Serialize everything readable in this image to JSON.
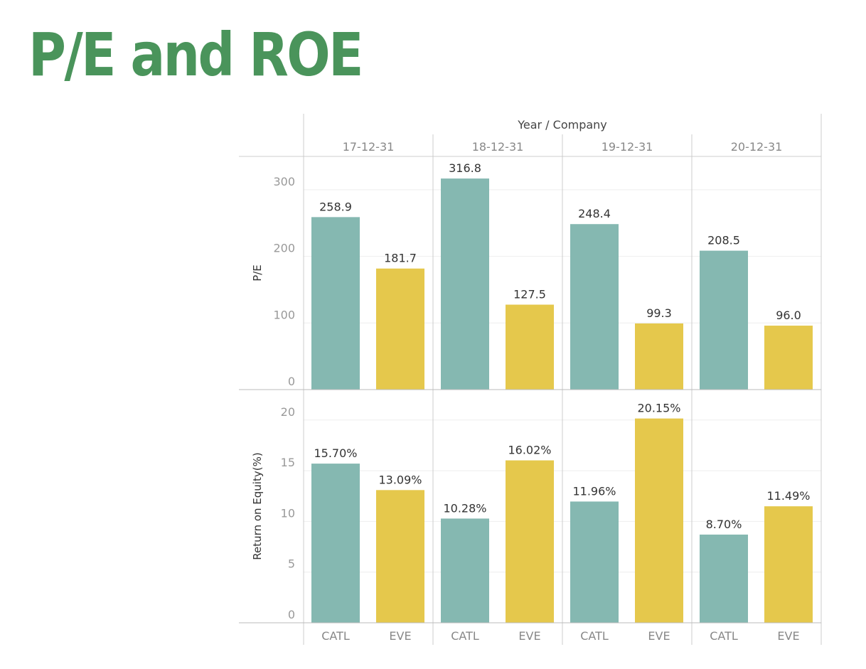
{
  "title": "P/E and ROE",
  "colors": {
    "title": "#4a945b",
    "CATL": "#85b8b1",
    "EVE": "#e5c84c"
  },
  "chart_data": {
    "type": "bar",
    "header": "Year / Company",
    "years": [
      "17-12-31",
      "18-12-31",
      "19-12-31",
      "20-12-31"
    ],
    "companies": [
      "CATL",
      "EVE"
    ],
    "panels": [
      {
        "ylabel": "P/E",
        "ylim": [
          0,
          350
        ],
        "yticks": [
          "0",
          "100",
          "200",
          "300"
        ],
        "values": [
          [
            258.9,
            181.7
          ],
          [
            316.8,
            127.5
          ],
          [
            248.4,
            99.3
          ],
          [
            208.5,
            96.0
          ]
        ],
        "labels": [
          [
            "258.9",
            "181.7"
          ],
          [
            "316.8",
            "127.5"
          ],
          [
            "248.4",
            "99.3"
          ],
          [
            "208.5",
            "96.0"
          ]
        ]
      },
      {
        "ylabel": "Return on Equity(%)",
        "ylim": [
          0,
          23
        ],
        "yticks": [
          "0",
          "5",
          "10",
          "15",
          "20"
        ],
        "values": [
          [
            15.7,
            13.09
          ],
          [
            10.28,
            16.02
          ],
          [
            11.96,
            20.15
          ],
          [
            8.7,
            11.49
          ]
        ],
        "labels": [
          [
            "15.70%",
            "13.09%"
          ],
          [
            "10.28%",
            "16.02%"
          ],
          [
            "11.96%",
            "20.15%"
          ],
          [
            "8.70%",
            "11.49%"
          ]
        ]
      }
    ],
    "grid": true,
    "legend": "none"
  }
}
